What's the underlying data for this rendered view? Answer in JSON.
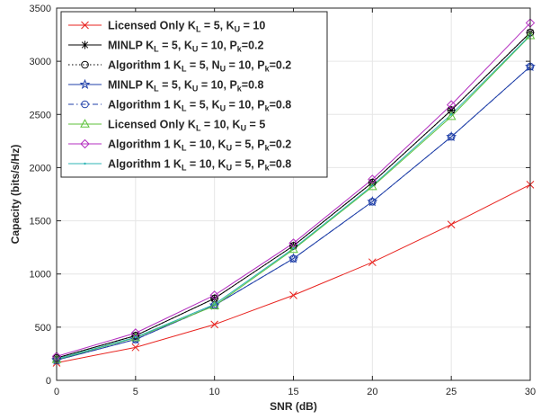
{
  "chart_data": {
    "type": "line",
    "title": "",
    "xlabel": "SNR (dB)",
    "ylabel": "Capacity (bits/s/Hz)",
    "xlim": [
      0,
      30
    ],
    "ylim": [
      0,
      3500
    ],
    "x_ticks": [
      0,
      5,
      10,
      15,
      20,
      25,
      30
    ],
    "y_ticks": [
      0,
      500,
      1000,
      1500,
      2000,
      2500,
      3000,
      3500
    ],
    "grid": true,
    "legend_position": "top-left",
    "x": [
      0,
      5,
      10,
      15,
      20,
      25,
      30
    ],
    "series": [
      {
        "name": "Licensed Only K_L = 5, K_U = 10",
        "legend": [
          {
            "t": "Licensed Only K"
          },
          {
            "t": "L",
            "sub": true
          },
          {
            "t": " = 5, K"
          },
          {
            "t": "U",
            "sub": true
          },
          {
            "t": " = 10"
          }
        ],
        "color": "#e8231f",
        "marker": "x",
        "dash": "solid",
        "values": [
          165,
          310,
          525,
          800,
          1110,
          1465,
          1840
        ]
      },
      {
        "name": "MINLP K_L = 5, K_U = 10, P_k=0.2",
        "legend": [
          {
            "t": "MINLP K"
          },
          {
            "t": "L",
            "sub": true
          },
          {
            "t": " = 5, K"
          },
          {
            "t": "U",
            "sub": true
          },
          {
            "t": " = 10, P"
          },
          {
            "t": "k",
            "sub": true
          },
          {
            "t": "=0.2"
          }
        ],
        "color": "#000000",
        "marker": "asterisk",
        "dash": "solid",
        "values": [
          210,
          420,
          770,
          1265,
          1860,
          2540,
          3270
        ]
      },
      {
        "name": "Algorithm 1 K_L = 5, N_U = 10, P_k=0.2",
        "legend": [
          {
            "t": "Algorithm 1  K"
          },
          {
            "t": "L",
            "sub": true
          },
          {
            "t": " = 5, N"
          },
          {
            "t": "U",
            "sub": true
          },
          {
            "t": " = 10, P"
          },
          {
            "t": "k",
            "sub": true
          },
          {
            "t": "=0.2"
          }
        ],
        "color": "#000000",
        "marker": "circle",
        "dash": "dotted",
        "values": [
          210,
          420,
          770,
          1265,
          1860,
          2540,
          3270
        ]
      },
      {
        "name": "MINLP K_L = 5, K_U = 10, P_k=0.8",
        "legend": [
          {
            "t": "MINLP K"
          },
          {
            "t": "L",
            "sub": true
          },
          {
            "t": " = 5, K"
          },
          {
            "t": "U",
            "sub": true
          },
          {
            "t": " = 10, P"
          },
          {
            "t": "k",
            "sub": true
          },
          {
            "t": "=0.8"
          }
        ],
        "color": "#1f3fa8",
        "marker": "star",
        "dash": "solid",
        "values": [
          190,
          385,
          705,
          1145,
          1680,
          2290,
          2950
        ]
      },
      {
        "name": "Algorithm 1 K_L = 5, K_U = 10, P_k=0.8",
        "legend": [
          {
            "t": "Algorithm 1  K"
          },
          {
            "t": "L",
            "sub": true
          },
          {
            "t": " = 5, K"
          },
          {
            "t": "U",
            "sub": true
          },
          {
            "t": " = 10, P"
          },
          {
            "t": "k",
            "sub": true
          },
          {
            "t": "=0.8"
          }
        ],
        "color": "#1f3fa8",
        "marker": "circle",
        "dash": "dashdot",
        "values": [
          190,
          385,
          705,
          1145,
          1680,
          2290,
          2950
        ]
      },
      {
        "name": "Licensed Only K_L = 10, K_U = 5",
        "legend": [
          {
            "t": "Licensed Only K"
          },
          {
            "t": "L",
            "sub": true
          },
          {
            "t": " = 10, K"
          },
          {
            "t": "U",
            "sub": true
          },
          {
            "t": " = 5"
          }
        ],
        "color": "#5cc23a",
        "marker": "triangle",
        "dash": "solid",
        "values": [
          195,
          400,
          700,
          1230,
          1820,
          2480,
          3240
        ]
      },
      {
        "name": "Algorithm 1 K_L = 10, K_U = 5, P_k=0.2",
        "legend": [
          {
            "t": "Algorithm 1  K"
          },
          {
            "t": "L",
            "sub": true
          },
          {
            "t": " = 10, K"
          },
          {
            "t": "U",
            "sub": true
          },
          {
            "t": " = 5, P"
          },
          {
            "t": "k",
            "sub": true
          },
          {
            "t": "=0.2"
          }
        ],
        "color": "#b42fc0",
        "marker": "diamond",
        "dash": "solid",
        "values": [
          225,
          445,
          800,
          1290,
          1890,
          2590,
          3360
        ]
      },
      {
        "name": "Algorithm 1 K_L = 10, K_U = 5, P_k=0.8",
        "legend": [
          {
            "t": "Algorithm 1  K"
          },
          {
            "t": "L",
            "sub": true
          },
          {
            "t": " = 10, K"
          },
          {
            "t": "U",
            "sub": true
          },
          {
            "t": " = 5, P"
          },
          {
            "t": "k",
            "sub": true
          },
          {
            "t": "=0.8"
          }
        ],
        "color": "#2fb5b5",
        "marker": "dot",
        "dash": "solid",
        "values": [
          200,
          405,
          715,
          1240,
          1830,
          2500,
          3245
        ]
      }
    ]
  }
}
